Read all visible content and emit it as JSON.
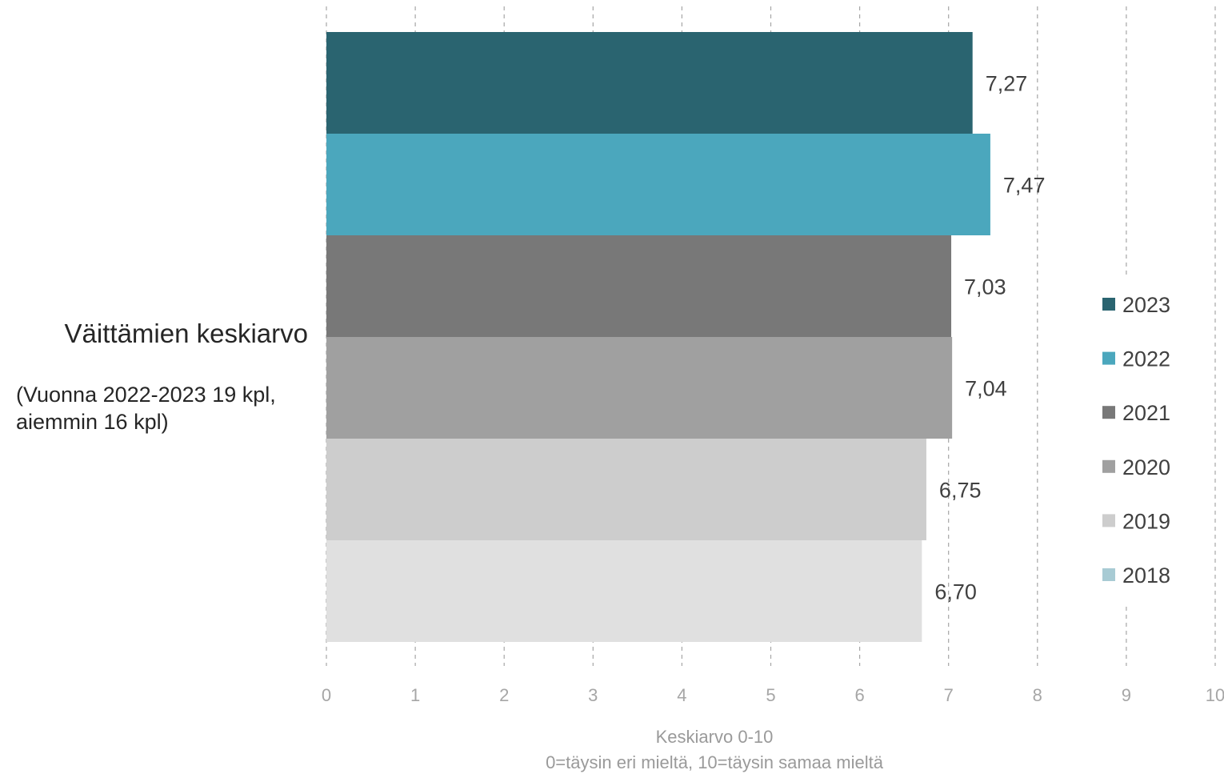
{
  "category": {
    "label": "Väittämien keskiarvo",
    "sublabel_line1": "(Vuonna 2022-2023 19 kpl,",
    "sublabel_line2": "aiemmin 16 kpl)"
  },
  "x_axis": {
    "title_line1": "Keskiarvo 0-10",
    "title_line2": "0=täysin eri mieltä, 10=täysin samaa mieltä"
  },
  "chart_data": {
    "type": "bar",
    "orientation": "horizontal",
    "categories": [
      "Väittämien keskiarvo"
    ],
    "series": [
      {
        "name": "2023",
        "values": [
          7.27
        ],
        "label": "7,27",
        "color": "#2a6470"
      },
      {
        "name": "2022",
        "values": [
          7.47
        ],
        "label": "7,47",
        "color": "#4ba7bd"
      },
      {
        "name": "2021",
        "values": [
          7.03
        ],
        "label": "7,03",
        "color": "#787878"
      },
      {
        "name": "2020",
        "values": [
          7.04
        ],
        "label": "7,04",
        "color": "#a0a0a0"
      },
      {
        "name": "2019",
        "values": [
          6.75
        ],
        "label": "6,75",
        "color": "#cdcdcd"
      },
      {
        "name": "2018",
        "values": [
          6.7
        ],
        "label": "6,70",
        "color": "#e0e0e0"
      }
    ],
    "legend": [
      {
        "name": "2023",
        "color": "#2a6470"
      },
      {
        "name": "2022",
        "color": "#4ba7bd"
      },
      {
        "name": "2021",
        "color": "#787878"
      },
      {
        "name": "2020",
        "color": "#a0a0a0"
      },
      {
        "name": "2019",
        "color": "#cdcdcd"
      },
      {
        "name": "2018",
        "color": "#a8cbd4"
      }
    ],
    "xlim": [
      0,
      10
    ],
    "xticks": [
      "0",
      "1",
      "2",
      "3",
      "4",
      "5",
      "6",
      "7",
      "8",
      "9",
      "10"
    ],
    "grid": "vertical dashed",
    "legend_position": "right"
  }
}
